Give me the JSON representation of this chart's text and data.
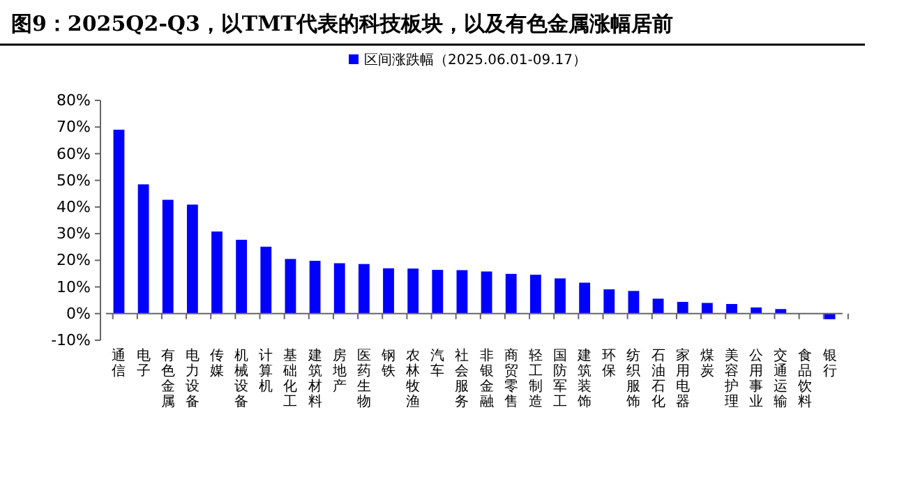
{
  "chart_data": {
    "type": "bar",
    "title": "图9：2025Q2-Q3，以TMT代表的科技板块，以及有色金属涨幅居前",
    "categories": [
      "通信",
      "电子",
      "有色金属",
      "电力设备",
      "传媒",
      "机械设备",
      "计算机",
      "基础化工",
      "建筑材料",
      "房地产",
      "医药生物",
      "钢铁",
      "农林牧渔",
      "汽车",
      "社会服务",
      "非银金融",
      "商贸零售",
      "轻工制造",
      "国防军工",
      "建筑装饰",
      "环保",
      "纺织服饰",
      "石油石化",
      "家用电器",
      "煤炭",
      "美容护理",
      "公用事业",
      "交通运输",
      "食品饮料",
      "银行"
    ],
    "series": [
      {
        "name": "区间涨跌幅（2025.06.01-09.17）",
        "color": "#0000ff",
        "values": [
          69,
          48.5,
          42.7,
          40.9,
          30.8,
          27.7,
          25.1,
          20.5,
          19.8,
          18.9,
          18.6,
          17,
          16.9,
          16.4,
          16.3,
          15.8,
          14.9,
          14.6,
          13.2,
          11.6,
          9.1,
          8.5,
          5.6,
          4.4,
          4,
          3.6,
          2.3,
          1.7,
          0,
          -2.1
        ]
      }
    ],
    "ylim": [
      -10,
      80
    ],
    "yticks": [
      {
        "value": -10,
        "label": "-10%"
      },
      {
        "value": 0,
        "label": "0%"
      },
      {
        "value": 10,
        "label": "10%"
      },
      {
        "value": 20,
        "label": "20%"
      },
      {
        "value": 30,
        "label": "30%"
      },
      {
        "value": 40,
        "label": "40%"
      },
      {
        "value": 50,
        "label": "50%"
      },
      {
        "value": 60,
        "label": "60%"
      },
      {
        "value": 70,
        "label": "70%"
      },
      {
        "value": 80,
        "label": "80%"
      }
    ],
    "grid": false,
    "legend": "top"
  }
}
